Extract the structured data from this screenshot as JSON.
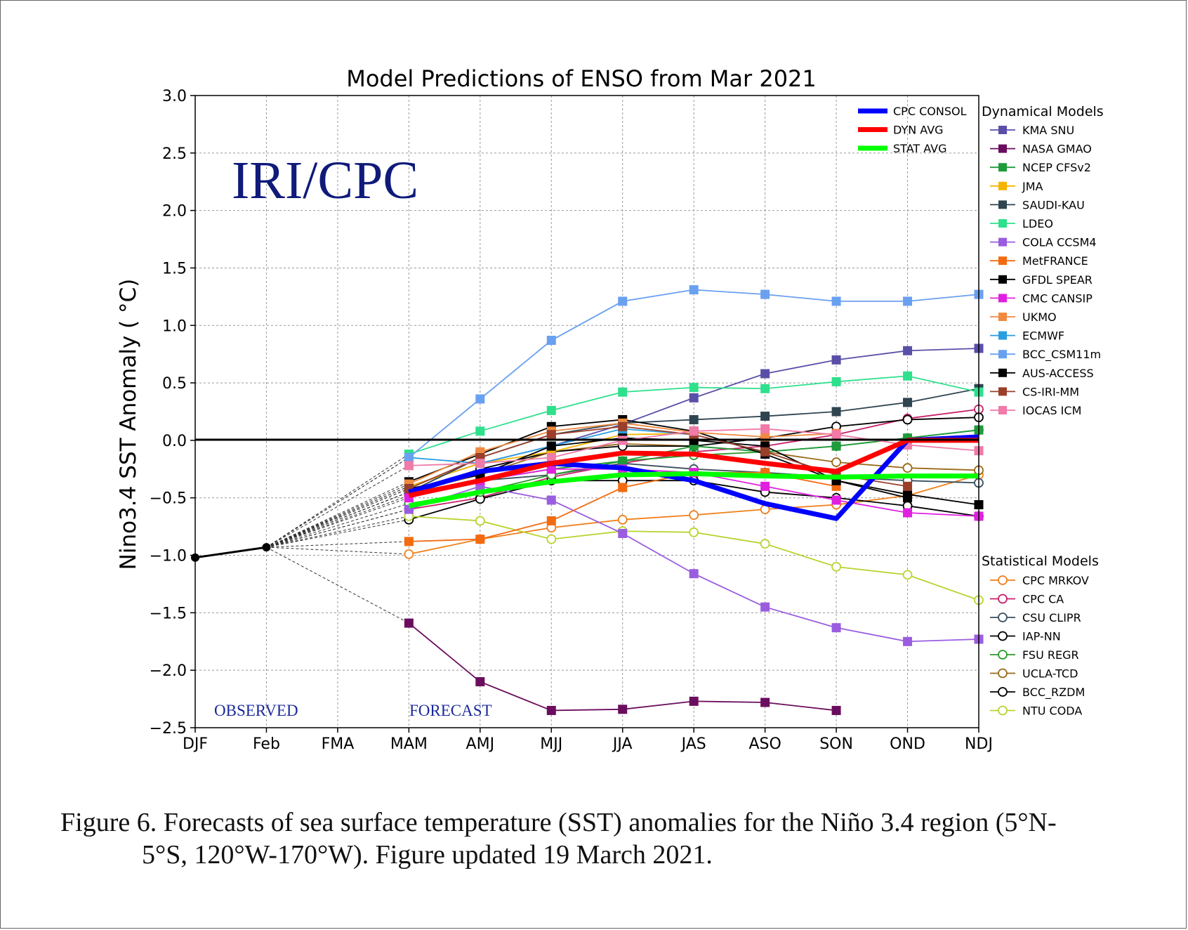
{
  "caption": {
    "line1": "Figure  6. Forecasts of sea surface temperature (SST) anomalies  for the Niño 3.4 region (5°N-",
    "line2": "5°S, 120°W-170°W).  Figure updated 19 March 2021."
  },
  "chart_data": {
    "type": "line",
    "title": "Model Predictions of ENSO from Mar 2021",
    "ylabel": "Nino3.4 SST Anomaly ( °C)",
    "xlabel": "",
    "categories": [
      "DJF",
      "Feb",
      "FMA",
      "MAM",
      "AMJ",
      "MJJ",
      "JJA",
      "JAS",
      "ASO",
      "SON",
      "OND",
      "NDJ"
    ],
    "ylim": [
      -2.5,
      3.0
    ],
    "yticks": [
      {
        "v": 3.0,
        "label": "3.0"
      },
      {
        "v": 2.5,
        "label": "2.5"
      },
      {
        "v": 2.0,
        "label": "2.0"
      },
      {
        "v": 1.5,
        "label": "1.5"
      },
      {
        "v": 1.0,
        "label": "1.0"
      },
      {
        "v": 0.5,
        "label": "0.5"
      },
      {
        "v": 0.0,
        "label": "0.0"
      },
      {
        "v": -0.5,
        "label": "−0.5"
      },
      {
        "v": -1.0,
        "label": "−1.0"
      },
      {
        "v": -1.5,
        "label": "−1.5"
      },
      {
        "v": -2.0,
        "label": "−2.0"
      },
      {
        "v": -2.5,
        "label": "−2.5"
      }
    ],
    "grid": true,
    "annotations": {
      "watermark": "IRI/CPC",
      "observed": "OBSERVED",
      "forecast": "FORECAST"
    },
    "observed": {
      "x": [
        0,
        1
      ],
      "values": [
        -1.02,
        -0.93
      ],
      "color": "#000000"
    },
    "averages": [
      {
        "name": "CPC CONSOL",
        "color": "#0000ff",
        "values": [
          -0.45,
          -0.27,
          -0.2,
          -0.24,
          -0.35,
          -0.55,
          -0.68,
          0.0,
          0.03
        ]
      },
      {
        "name": "DYN AVG",
        "color": "#ff0000",
        "values": [
          -0.48,
          -0.35,
          -0.2,
          -0.11,
          -0.12,
          -0.2,
          -0.27,
          0.0,
          0.0
        ]
      },
      {
        "name": "STAT AVG",
        "color": "#00ff00",
        "values": [
          -0.57,
          -0.45,
          -0.36,
          -0.3,
          -0.29,
          -0.31,
          -0.32,
          -0.31,
          -0.31
        ]
      }
    ],
    "legend_dynamical": {
      "title": "Dynamical Models",
      "series": [
        {
          "name": "KMA SNU",
          "color": "#5a4fa8",
          "values": [
            -0.4,
            -0.2,
            -0.05,
            0.14,
            0.37,
            0.58,
            0.7,
            0.78,
            0.8
          ]
        },
        {
          "name": "NASA GMAO",
          "color": "#6b0d5e",
          "values": [
            -1.59,
            -2.1,
            -2.35,
            -2.34,
            -2.27,
            -2.28,
            -2.35,
            null,
            null
          ]
        },
        {
          "name": "NCEP CFSv2",
          "color": "#1f9b3b",
          "values": [
            -0.45,
            -0.35,
            -0.25,
            -0.18,
            -0.05,
            -0.1,
            -0.05,
            0.02,
            0.09
          ]
        },
        {
          "name": "JMA",
          "color": "#f5b400",
          "values": [
            -0.4,
            -0.2,
            -0.1,
            0.05,
            0.06,
            null,
            null,
            null,
            null
          ]
        },
        {
          "name": "SAUDI-KAU",
          "color": "#2f4550",
          "values": [
            -0.45,
            -0.15,
            0.05,
            0.15,
            0.18,
            0.21,
            0.25,
            0.33,
            0.45
          ]
        },
        {
          "name": "LDEO",
          "color": "#2ee08c",
          "values": [
            -0.12,
            0.08,
            0.26,
            0.42,
            0.46,
            0.45,
            0.51,
            0.56,
            0.42
          ]
        },
        {
          "name": "COLA CCSM4",
          "color": "#9a5de0",
          "values": [
            -0.6,
            -0.4,
            -0.52,
            -0.81,
            -1.16,
            -1.45,
            -1.63,
            -1.75,
            -1.73
          ]
        },
        {
          "name": "MetFRANCE",
          "color": "#f36b10",
          "values": [
            -0.88,
            -0.86,
            -0.7,
            -0.41,
            -0.28,
            -0.28,
            -0.4,
            null,
            null
          ]
        },
        {
          "name": "GFDL SPEAR",
          "color": "#000000",
          "values": [
            -0.36,
            -0.12,
            0.12,
            0.18,
            0.08,
            -0.12,
            -0.35,
            -0.47,
            -0.56
          ]
        },
        {
          "name": "CMC CANSIP",
          "color": "#e020e0",
          "values": [
            -0.5,
            -0.35,
            -0.25,
            -0.25,
            -0.28,
            -0.4,
            -0.52,
            -0.63,
            -0.66
          ]
        },
        {
          "name": "UKMO",
          "color": "#f08a40",
          "values": [
            -0.38,
            -0.1,
            0.08,
            0.15,
            0.07,
            0.03,
            0.06,
            null,
            null
          ]
        },
        {
          "name": "ECMWF",
          "color": "#2a9ee0",
          "values": [
            -0.15,
            -0.2,
            -0.05,
            0.1,
            0.05,
            null,
            null,
            null,
            null
          ]
        },
        {
          "name": "BCC_CSM11m",
          "color": "#6aa0f0",
          "values": [
            -0.15,
            0.36,
            0.87,
            1.21,
            1.31,
            1.27,
            1.21,
            1.21,
            1.27
          ]
        },
        {
          "name": "AUS-ACCESS",
          "color": "#000000",
          "values": [
            -0.42,
            -0.3,
            -0.05,
            0.02,
            0.0,
            -0.05,
            -0.35,
            -0.5,
            null
          ]
        },
        {
          "name": "CS-IRI-MM",
          "color": "#9a3f2a",
          "values": [
            -0.42,
            -0.15,
            0.05,
            0.12,
            0.05,
            -0.1,
            -0.3,
            -0.4,
            null
          ]
        },
        {
          "name": "IOCAS ICM",
          "color": "#f07aa8",
          "values": [
            -0.22,
            -0.2,
            -0.15,
            0.0,
            0.08,
            0.1,
            0.05,
            -0.04,
            -0.09
          ]
        }
      ]
    },
    "legend_statistical": {
      "title": "Statistical Models",
      "series": [
        {
          "name": "CPC MRKOV",
          "color": "#f07f1a",
          "values": [
            -0.99,
            -0.86,
            -0.76,
            -0.69,
            -0.65,
            -0.6,
            -0.56,
            -0.48,
            -0.3
          ]
        },
        {
          "name": "CPC CA",
          "color": "#c8206a",
          "values": [
            -0.6,
            -0.5,
            -0.32,
            -0.2,
            -0.1,
            -0.05,
            0.05,
            0.19,
            0.27
          ]
        },
        {
          "name": "CSU CLIPR",
          "color": "#3a5060",
          "values": [
            -0.48,
            -0.35,
            -0.3,
            -0.2,
            -0.25,
            -0.28,
            -0.32,
            -0.35,
            -0.37
          ]
        },
        {
          "name": "IAP-NN",
          "color": "#000000",
          "values": [
            -0.69,
            -0.51,
            -0.35,
            -0.35,
            -0.35,
            -0.45,
            -0.5,
            -0.57,
            -0.66
          ]
        },
        {
          "name": "FSU REGR",
          "color": "#2a9a2a",
          "values": [
            -0.55,
            -0.45,
            -0.3,
            -0.18,
            -0.13,
            -0.1,
            -0.05,
            0.02,
            0.09
          ]
        },
        {
          "name": "UCLA-TCD",
          "color": "#9a6a1a",
          "values": [
            -0.45,
            -0.3,
            -0.1,
            -0.03,
            -0.05,
            -0.1,
            -0.19,
            -0.24,
            -0.26
          ]
        },
        {
          "name": "BCC_RZDM",
          "color": "#000000",
          "values": [
            -0.45,
            -0.25,
            -0.1,
            -0.05,
            -0.05,
            0.02,
            0.12,
            0.18,
            0.2
          ]
        },
        {
          "name": "NTU CODA",
          "color": "#b8d430",
          "values": [
            -0.66,
            -0.7,
            -0.86,
            -0.79,
            -0.8,
            -0.9,
            -1.1,
            -1.17,
            -1.39
          ]
        }
      ]
    }
  }
}
